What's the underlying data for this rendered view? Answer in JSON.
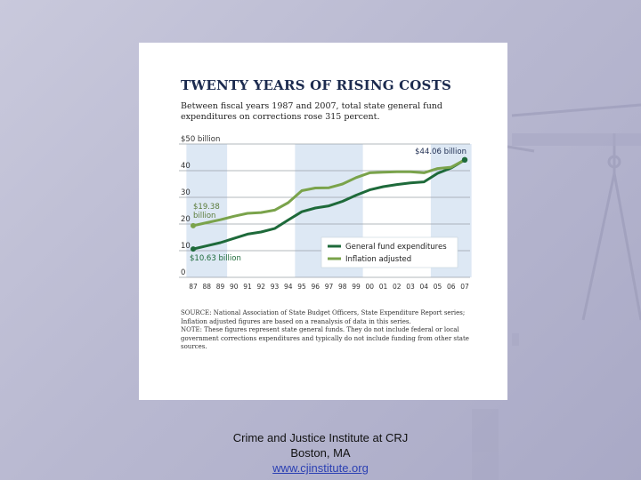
{
  "chart_data": {
    "type": "line",
    "title": "TWENTY YEARS OF RISING COSTS",
    "subtitle": "Between fiscal years 1987 and 2007, total state general fund expenditures on corrections rose 315 percent.",
    "xlabel": "",
    "ylabel": "",
    "x_tick_labels": [
      "87",
      "88",
      "89",
      "90",
      "91",
      "92",
      "93",
      "94",
      "95",
      "96",
      "97",
      "98",
      "99",
      "00",
      "01",
      "02",
      "03",
      "04",
      "05",
      "06",
      "07"
    ],
    "y_tick_labels": [
      "$50 billion",
      "40",
      "30",
      "20",
      "10",
      "0"
    ],
    "y_ticks": [
      50,
      40,
      30,
      20,
      10,
      0
    ],
    "ylim": [
      0,
      50
    ],
    "series": [
      {
        "name": "General fund expenditures",
        "color": "#1e6a3a",
        "values": [
          10.63,
          11.8,
          13.0,
          14.6,
          16.2,
          17.0,
          18.3,
          21.5,
          24.6,
          26.0,
          26.8,
          28.5,
          30.8,
          32.8,
          34.0,
          34.8,
          35.4,
          35.8,
          39.0,
          41.0,
          44.06
        ]
      },
      {
        "name": "Inflation adjusted",
        "color": "#7aa34b",
        "values": [
          19.38,
          20.5,
          21.6,
          22.9,
          24.0,
          24.3,
          25.2,
          28.0,
          32.5,
          33.5,
          33.6,
          35.0,
          37.4,
          39.2,
          39.4,
          39.6,
          39.6,
          39.2,
          40.8,
          41.3,
          44.06
        ]
      }
    ],
    "annotations": {
      "start_inflation": "$19.38 billion",
      "start_general": "$10.63 billion",
      "end_value": "$44.06 billion"
    },
    "shaded_bands": [
      [
        0,
        2
      ],
      [
        8,
        12
      ],
      [
        18,
        20
      ]
    ],
    "grid": true,
    "legend_placement": "bottom-right"
  },
  "notes": {
    "source": "SOURCE: National Association of State Budget Officers, State Expenditure Report series; Inflation adjusted figures are based on a reanalysis of data in this series.",
    "note": "NOTE: These figures represent state general funds. They do not include federal or local government corrections expenditures and typically do not include funding from other state sources."
  },
  "footer": {
    "line1": "Crime and Justice Institute at CRJ",
    "line2": "Boston, MA",
    "link": "www.cjinstitute.org"
  },
  "colors": {
    "band": "#dde8f4",
    "title": "#1c2b4f"
  }
}
